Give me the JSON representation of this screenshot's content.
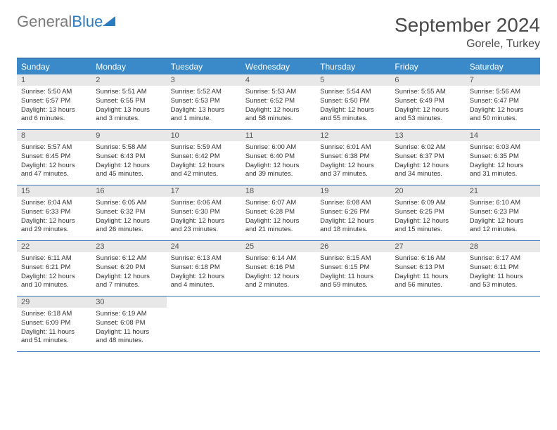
{
  "brand": {
    "part1": "General",
    "part2": "Blue"
  },
  "title": "September 2024",
  "location": "Gorele, Turkey",
  "colors": {
    "header_bar": "#3a8ac9",
    "border": "#3a7ab8",
    "daynum_bg": "#e8e8e8",
    "text": "#333333",
    "brand_gray": "#7a7a7a",
    "brand_blue": "#2b7bbf"
  },
  "weekdays": [
    "Sunday",
    "Monday",
    "Tuesday",
    "Wednesday",
    "Thursday",
    "Friday",
    "Saturday"
  ],
  "weeks": [
    [
      {
        "n": "1",
        "sr": "Sunrise: 5:50 AM",
        "ss": "Sunset: 6:57 PM",
        "dl": "Daylight: 13 hours and 6 minutes."
      },
      {
        "n": "2",
        "sr": "Sunrise: 5:51 AM",
        "ss": "Sunset: 6:55 PM",
        "dl": "Daylight: 13 hours and 3 minutes."
      },
      {
        "n": "3",
        "sr": "Sunrise: 5:52 AM",
        "ss": "Sunset: 6:53 PM",
        "dl": "Daylight: 13 hours and 1 minute."
      },
      {
        "n": "4",
        "sr": "Sunrise: 5:53 AM",
        "ss": "Sunset: 6:52 PM",
        "dl": "Daylight: 12 hours and 58 minutes."
      },
      {
        "n": "5",
        "sr": "Sunrise: 5:54 AM",
        "ss": "Sunset: 6:50 PM",
        "dl": "Daylight: 12 hours and 55 minutes."
      },
      {
        "n": "6",
        "sr": "Sunrise: 5:55 AM",
        "ss": "Sunset: 6:49 PM",
        "dl": "Daylight: 12 hours and 53 minutes."
      },
      {
        "n": "7",
        "sr": "Sunrise: 5:56 AM",
        "ss": "Sunset: 6:47 PM",
        "dl": "Daylight: 12 hours and 50 minutes."
      }
    ],
    [
      {
        "n": "8",
        "sr": "Sunrise: 5:57 AM",
        "ss": "Sunset: 6:45 PM",
        "dl": "Daylight: 12 hours and 47 minutes."
      },
      {
        "n": "9",
        "sr": "Sunrise: 5:58 AM",
        "ss": "Sunset: 6:43 PM",
        "dl": "Daylight: 12 hours and 45 minutes."
      },
      {
        "n": "10",
        "sr": "Sunrise: 5:59 AM",
        "ss": "Sunset: 6:42 PM",
        "dl": "Daylight: 12 hours and 42 minutes."
      },
      {
        "n": "11",
        "sr": "Sunrise: 6:00 AM",
        "ss": "Sunset: 6:40 PM",
        "dl": "Daylight: 12 hours and 39 minutes."
      },
      {
        "n": "12",
        "sr": "Sunrise: 6:01 AM",
        "ss": "Sunset: 6:38 PM",
        "dl": "Daylight: 12 hours and 37 minutes."
      },
      {
        "n": "13",
        "sr": "Sunrise: 6:02 AM",
        "ss": "Sunset: 6:37 PM",
        "dl": "Daylight: 12 hours and 34 minutes."
      },
      {
        "n": "14",
        "sr": "Sunrise: 6:03 AM",
        "ss": "Sunset: 6:35 PM",
        "dl": "Daylight: 12 hours and 31 minutes."
      }
    ],
    [
      {
        "n": "15",
        "sr": "Sunrise: 6:04 AM",
        "ss": "Sunset: 6:33 PM",
        "dl": "Daylight: 12 hours and 29 minutes."
      },
      {
        "n": "16",
        "sr": "Sunrise: 6:05 AM",
        "ss": "Sunset: 6:32 PM",
        "dl": "Daylight: 12 hours and 26 minutes."
      },
      {
        "n": "17",
        "sr": "Sunrise: 6:06 AM",
        "ss": "Sunset: 6:30 PM",
        "dl": "Daylight: 12 hours and 23 minutes."
      },
      {
        "n": "18",
        "sr": "Sunrise: 6:07 AM",
        "ss": "Sunset: 6:28 PM",
        "dl": "Daylight: 12 hours and 21 minutes."
      },
      {
        "n": "19",
        "sr": "Sunrise: 6:08 AM",
        "ss": "Sunset: 6:26 PM",
        "dl": "Daylight: 12 hours and 18 minutes."
      },
      {
        "n": "20",
        "sr": "Sunrise: 6:09 AM",
        "ss": "Sunset: 6:25 PM",
        "dl": "Daylight: 12 hours and 15 minutes."
      },
      {
        "n": "21",
        "sr": "Sunrise: 6:10 AM",
        "ss": "Sunset: 6:23 PM",
        "dl": "Daylight: 12 hours and 12 minutes."
      }
    ],
    [
      {
        "n": "22",
        "sr": "Sunrise: 6:11 AM",
        "ss": "Sunset: 6:21 PM",
        "dl": "Daylight: 12 hours and 10 minutes."
      },
      {
        "n": "23",
        "sr": "Sunrise: 6:12 AM",
        "ss": "Sunset: 6:20 PM",
        "dl": "Daylight: 12 hours and 7 minutes."
      },
      {
        "n": "24",
        "sr": "Sunrise: 6:13 AM",
        "ss": "Sunset: 6:18 PM",
        "dl": "Daylight: 12 hours and 4 minutes."
      },
      {
        "n": "25",
        "sr": "Sunrise: 6:14 AM",
        "ss": "Sunset: 6:16 PM",
        "dl": "Daylight: 12 hours and 2 minutes."
      },
      {
        "n": "26",
        "sr": "Sunrise: 6:15 AM",
        "ss": "Sunset: 6:15 PM",
        "dl": "Daylight: 11 hours and 59 minutes."
      },
      {
        "n": "27",
        "sr": "Sunrise: 6:16 AM",
        "ss": "Sunset: 6:13 PM",
        "dl": "Daylight: 11 hours and 56 minutes."
      },
      {
        "n": "28",
        "sr": "Sunrise: 6:17 AM",
        "ss": "Sunset: 6:11 PM",
        "dl": "Daylight: 11 hours and 53 minutes."
      }
    ],
    [
      {
        "n": "29",
        "sr": "Sunrise: 6:18 AM",
        "ss": "Sunset: 6:09 PM",
        "dl": "Daylight: 11 hours and 51 minutes."
      },
      {
        "n": "30",
        "sr": "Sunrise: 6:19 AM",
        "ss": "Sunset: 6:08 PM",
        "dl": "Daylight: 11 hours and 48 minutes."
      },
      null,
      null,
      null,
      null,
      null
    ]
  ]
}
